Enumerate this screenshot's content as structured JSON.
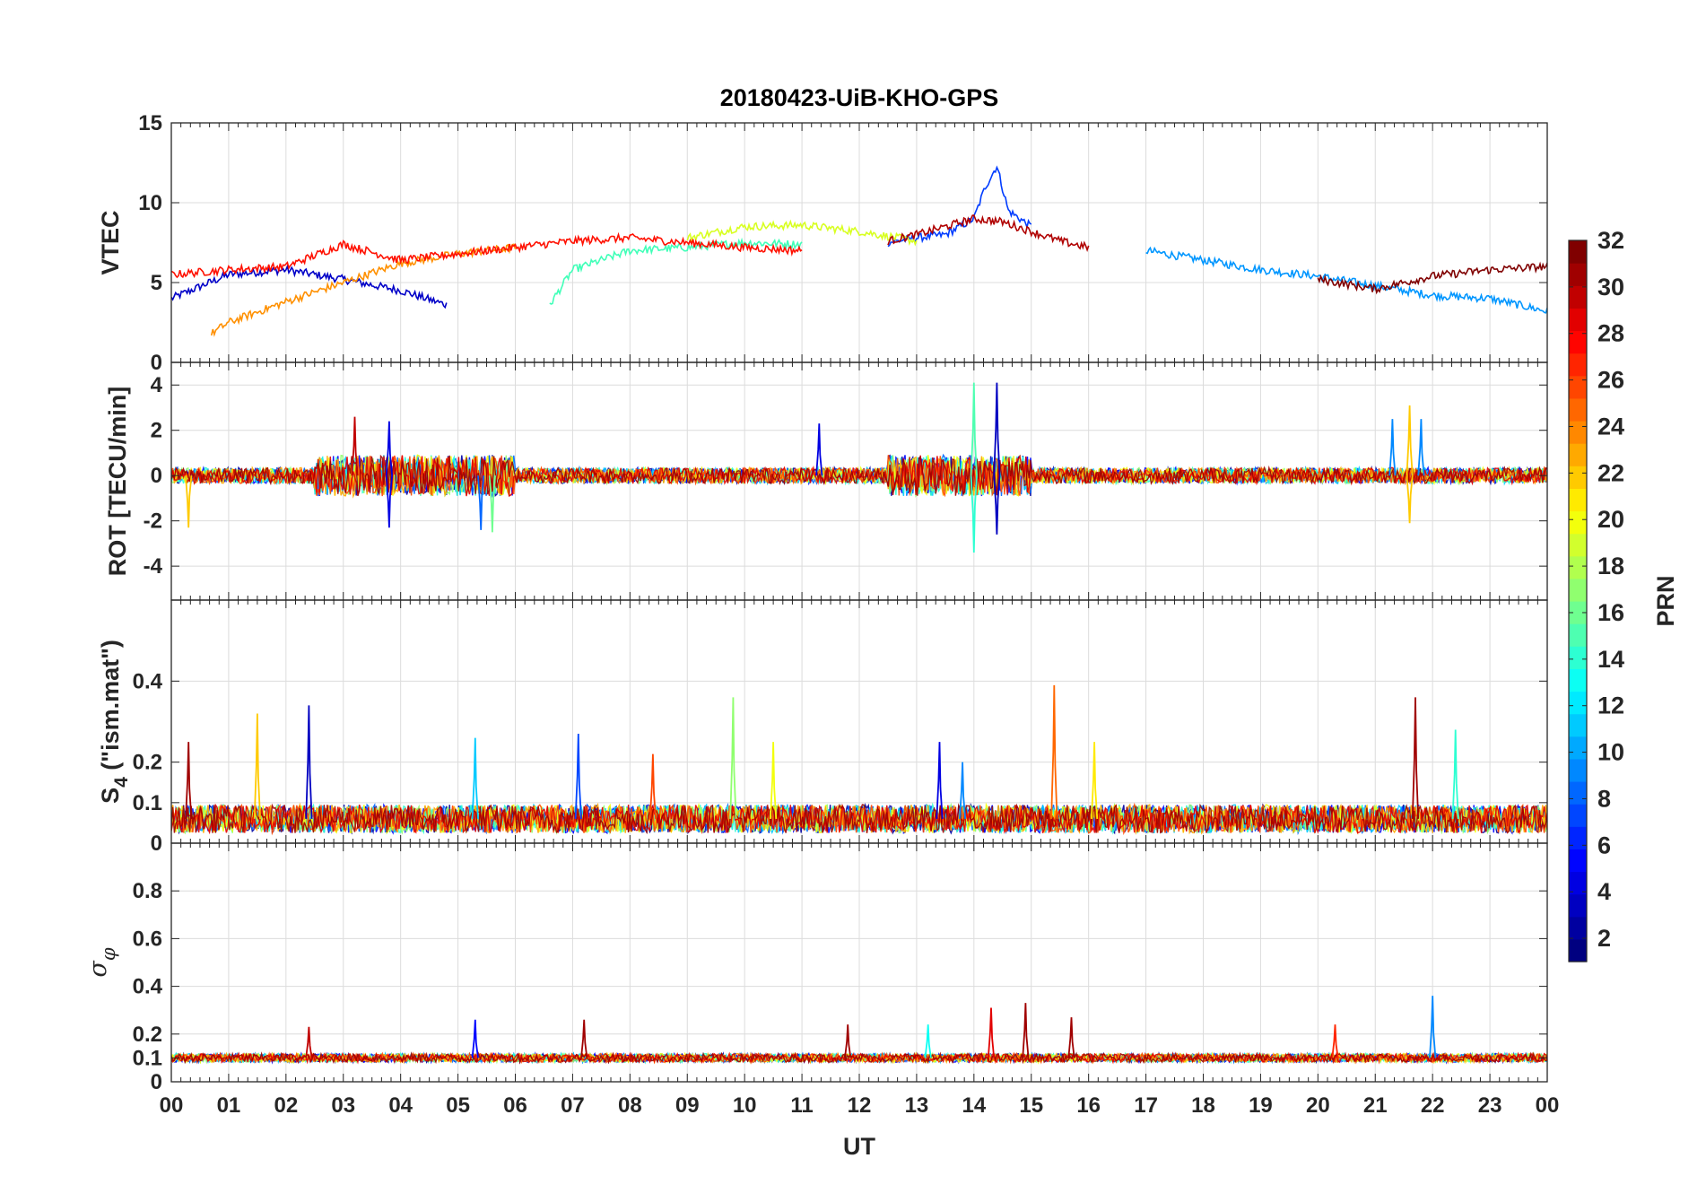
{
  "chart_data": {
    "type": "line",
    "title": "20180423-UiB-KHO-GPS",
    "xlabel": "UT",
    "x_tick_labels": [
      "00",
      "01",
      "02",
      "03",
      "04",
      "05",
      "06",
      "07",
      "08",
      "09",
      "10",
      "11",
      "12",
      "13",
      "14",
      "15",
      "16",
      "17",
      "18",
      "19",
      "20",
      "21",
      "22",
      "23",
      "00"
    ],
    "xlim": [
      0,
      24
    ],
    "grid": true,
    "colorbar": {
      "label": "PRN",
      "range": [
        1,
        32
      ],
      "tick_labels": [
        "2",
        "4",
        "6",
        "8",
        "10",
        "12",
        "14",
        "16",
        "18",
        "20",
        "22",
        "24",
        "26",
        "28",
        "30",
        "32"
      ],
      "tick_values": [
        2,
        4,
        6,
        8,
        10,
        12,
        14,
        16,
        18,
        20,
        22,
        24,
        26,
        28,
        30,
        32
      ],
      "colormap": "jet"
    },
    "panels": [
      {
        "name": "vtec",
        "ylabel": "VTEC",
        "ylim": [
          0,
          15
        ],
        "y_ticks": [
          0,
          5,
          10,
          15
        ],
        "y_tick_labels": [
          "0",
          "5",
          "10",
          "15"
        ],
        "description_values": "daily VTEC curves ~4-9 TECU, peak ~12.3 near 14.4 UT",
        "series": [
          {
            "prn": 2,
            "color": "#0000c8",
            "x": [
              0,
              1,
              2,
              3,
              4,
              4.8
            ],
            "y": [
              4,
              5.5,
              5.8,
              5.2,
              4.5,
              3.6
            ]
          },
          {
            "prn": 5,
            "color": "#003cff",
            "x": [
              12.5,
              13.0,
              13.5,
              14.0,
              14.2,
              14.4,
              14.6,
              15.0
            ],
            "y": [
              7.5,
              7.8,
              8.0,
              9.0,
              11.0,
              12.3,
              9.5,
              8.5
            ]
          },
          {
            "prn": 9,
            "color": "#0096ff",
            "x": [
              17,
              18,
              19,
              20,
              21,
              22,
              23,
              24
            ],
            "y": [
              7.0,
              6.4,
              5.8,
              5.4,
              4.8,
              4.2,
              4.0,
              3.2
            ]
          },
          {
            "prn": 15,
            "color": "#40ffb8",
            "x": [
              6.6,
              7.0,
              8.0,
              9.0,
              10.0,
              11.0
            ],
            "y": [
              3.6,
              5.8,
              7.0,
              7.2,
              7.5,
              7.4
            ]
          },
          {
            "prn": 19,
            "color": "#d8ff20",
            "x": [
              9,
              10,
              11,
              12,
              13
            ],
            "y": [
              7.8,
              8.5,
              8.6,
              8.2,
              7.6
            ]
          },
          {
            "prn": 23,
            "color": "#ff9000",
            "x": [
              0.7,
              1.0,
              2.0,
              3.0,
              4.0,
              5.0,
              6.0
            ],
            "y": [
              1.8,
              2.5,
              3.8,
              5.0,
              6.2,
              6.8,
              7.2
            ]
          },
          {
            "prn": 28,
            "color": "#ff1000",
            "x": [
              0,
              1,
              2,
              3,
              4,
              5,
              6,
              7,
              8,
              9,
              10,
              11
            ],
            "y": [
              5.5,
              5.8,
              6.0,
              7.4,
              6.4,
              6.8,
              7.2,
              7.6,
              7.8,
              7.5,
              7.2,
              7.0
            ]
          },
          {
            "prn": 31,
            "color": "#b00000",
            "x": [
              12.5,
              13,
              13.5,
              14,
              14.5,
              15,
              15.5,
              16
            ],
            "y": [
              7.6,
              8.0,
              8.5,
              9.0,
              8.8,
              8.2,
              7.6,
              7.2
            ]
          },
          {
            "prn": 32,
            "color": "#800000",
            "x": [
              20,
              21,
              22,
              23,
              24
            ],
            "y": [
              5.2,
              4.6,
              5.4,
              5.8,
              6.0
            ]
          }
        ]
      },
      {
        "name": "rot",
        "ylabel": "ROT [TECU/min]",
        "ylim": [
          -5.5,
          5
        ],
        "y_ticks": [
          -4,
          -2,
          0,
          2,
          4
        ],
        "y_tick_labels": [
          "-4",
          "-2",
          "0",
          "2",
          "4"
        ],
        "spikes": [
          {
            "x": 3.2,
            "y": 2.6,
            "prn": 30
          },
          {
            "x": 3.8,
            "y": 2.4,
            "prn": 4
          },
          {
            "x": 3.8,
            "y": -2.3,
            "prn": 4
          },
          {
            "x": 5.4,
            "y": -2.4,
            "prn": 8
          },
          {
            "x": 5.6,
            "y": -2.5,
            "prn": 16
          },
          {
            "x": 0.3,
            "y": -2.3,
            "prn": 22
          },
          {
            "x": 11.3,
            "y": 2.3,
            "prn": 4
          },
          {
            "x": 14.0,
            "y": 4.1,
            "prn": 15
          },
          {
            "x": 14.4,
            "y": 4.1,
            "prn": 3
          },
          {
            "x": 14.0,
            "y": -3.4,
            "prn": 14
          },
          {
            "x": 14.4,
            "y": -2.6,
            "prn": 3
          },
          {
            "x": 21.6,
            "y": 3.1,
            "prn": 22
          },
          {
            "x": 21.3,
            "y": 2.5,
            "prn": 9
          },
          {
            "x": 21.8,
            "y": 2.5,
            "prn": 9
          },
          {
            "x": 21.6,
            "y": -2.1,
            "prn": 22
          }
        ]
      },
      {
        "name": "s4",
        "ylabel": "S4 (\"ism.mat\")",
        "ylabel_main": "S",
        "ylabel_sub": "4",
        "ylabel_rest": " (\"ism.mat\")",
        "ylim": [
          0,
          0.6
        ],
        "y_ticks": [
          0,
          0.1,
          0.2,
          0.4
        ],
        "y_tick_labels": [
          "0",
          "0.1",
          "0.2",
          "0.4"
        ],
        "spikes": [
          {
            "x": 0.3,
            "y": 0.25,
            "prn": 31
          },
          {
            "x": 1.5,
            "y": 0.32,
            "prn": 22
          },
          {
            "x": 2.4,
            "y": 0.34,
            "prn": 3
          },
          {
            "x": 5.3,
            "y": 0.26,
            "prn": 11
          },
          {
            "x": 7.1,
            "y": 0.27,
            "prn": 7
          },
          {
            "x": 9.8,
            "y": 0.36,
            "prn": 17
          },
          {
            "x": 13.4,
            "y": 0.25,
            "prn": 4
          },
          {
            "x": 15.4,
            "y": 0.39,
            "prn": 25
          },
          {
            "x": 16.1,
            "y": 0.25,
            "prn": 21
          },
          {
            "x": 21.7,
            "y": 0.36,
            "prn": 31
          },
          {
            "x": 22.4,
            "y": 0.28,
            "prn": 14
          },
          {
            "x": 10.5,
            "y": 0.25,
            "prn": 20
          },
          {
            "x": 8.4,
            "y": 0.22,
            "prn": 26
          },
          {
            "x": 13.8,
            "y": 0.2,
            "prn": 9
          }
        ]
      },
      {
        "name": "sigma_phi",
        "ylabel": "σφ",
        "ylabel_main": "σ",
        "ylabel_sub": "φ",
        "ylim": [
          0,
          1
        ],
        "y_ticks": [
          0,
          0.1,
          0.2,
          0.4,
          0.6,
          0.8
        ],
        "y_tick_labels": [
          "0",
          "0.1",
          "0.2",
          "0.4",
          "0.6",
          "0.8"
        ],
        "spikes": [
          {
            "x": 2.4,
            "y": 0.23,
            "prn": 30
          },
          {
            "x": 5.3,
            "y": 0.26,
            "prn": 5
          },
          {
            "x": 7.2,
            "y": 0.26,
            "prn": 31
          },
          {
            "x": 11.8,
            "y": 0.24,
            "prn": 31
          },
          {
            "x": 13.2,
            "y": 0.24,
            "prn": 13
          },
          {
            "x": 14.3,
            "y": 0.31,
            "prn": 29
          },
          {
            "x": 14.9,
            "y": 0.33,
            "prn": 31
          },
          {
            "x": 15.7,
            "y": 0.27,
            "prn": 31
          },
          {
            "x": 20.3,
            "y": 0.24,
            "prn": 27
          },
          {
            "x": 22.0,
            "y": 0.36,
            "prn": 9
          }
        ]
      }
    ]
  }
}
